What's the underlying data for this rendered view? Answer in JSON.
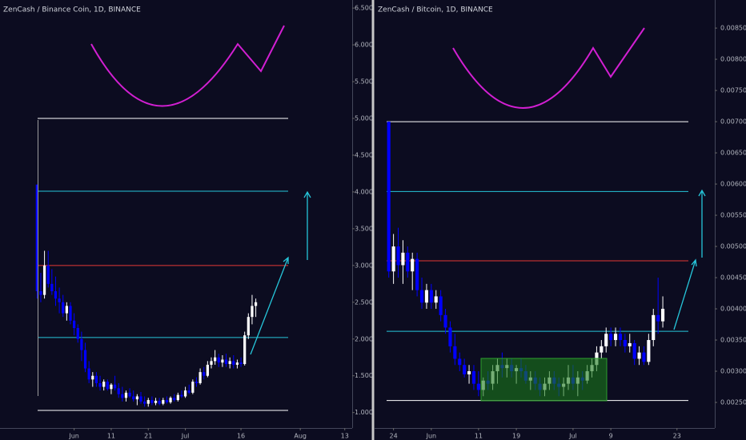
{
  "chart_data": [
    {
      "type": "candlestick",
      "title": "ZenCash / Binance Coin, 1D, BINANCE",
      "up_color": "#ffffff",
      "down_color": "#0000ff",
      "x": [
        0,
        1,
        2,
        3,
        4,
        5,
        6,
        7,
        8,
        9,
        10,
        11,
        12,
        13,
        14,
        15,
        16,
        17,
        18,
        19,
        20,
        21,
        22,
        23,
        24,
        25,
        26,
        27,
        28,
        29,
        30,
        31,
        32,
        33,
        34,
        35,
        36,
        37,
        38,
        39,
        40,
        41,
        42,
        43,
        44,
        45,
        46,
        47,
        48,
        49,
        50,
        51,
        52,
        53,
        54,
        55,
        56,
        57,
        58,
        59
      ],
      "ohlc": [
        [
          4.1,
          4.1,
          2.55,
          2.65
        ],
        [
          2.65,
          2.9,
          2.5,
          2.6
        ],
        [
          2.6,
          3.2,
          2.55,
          3.0
        ],
        [
          3.0,
          3.2,
          2.7,
          2.75
        ],
        [
          2.75,
          2.95,
          2.6,
          2.65
        ],
        [
          2.65,
          2.85,
          2.45,
          2.55
        ],
        [
          2.55,
          2.7,
          2.35,
          2.5
        ],
        [
          2.5,
          2.6,
          2.3,
          2.35
        ],
        [
          2.35,
          2.5,
          2.25,
          2.45
        ],
        [
          2.45,
          2.5,
          2.2,
          2.25
        ],
        [
          2.25,
          2.35,
          2.05,
          2.15
        ],
        [
          2.15,
          2.2,
          1.95,
          2.0
        ],
        [
          2.0,
          2.1,
          1.7,
          1.85
        ],
        [
          1.85,
          1.95,
          1.55,
          1.6
        ],
        [
          1.6,
          1.7,
          1.4,
          1.45
        ],
        [
          1.45,
          1.55,
          1.35,
          1.5
        ],
        [
          1.5,
          1.55,
          1.35,
          1.4
        ],
        [
          1.4,
          1.5,
          1.3,
          1.35
        ],
        [
          1.35,
          1.45,
          1.3,
          1.42
        ],
        [
          1.42,
          1.45,
          1.3,
          1.32
        ],
        [
          1.32,
          1.4,
          1.25,
          1.38
        ],
        [
          1.38,
          1.5,
          1.3,
          1.33
        ],
        [
          1.33,
          1.4,
          1.2,
          1.25
        ],
        [
          1.25,
          1.35,
          1.15,
          1.2
        ],
        [
          1.2,
          1.3,
          1.15,
          1.27
        ],
        [
          1.27,
          1.33,
          1.2,
          1.22
        ],
        [
          1.22,
          1.3,
          1.15,
          1.18
        ],
        [
          1.18,
          1.25,
          1.1,
          1.22
        ],
        [
          1.22,
          1.28,
          1.12,
          1.15
        ],
        [
          1.15,
          1.22,
          1.08,
          1.12
        ],
        [
          1.12,
          1.2,
          1.08,
          1.17
        ],
        [
          1.17,
          1.22,
          1.1,
          1.13
        ],
        [
          1.13,
          1.2,
          1.1,
          1.16
        ],
        [
          1.16,
          1.2,
          1.1,
          1.12
        ],
        [
          1.12,
          1.2,
          1.1,
          1.17
        ],
        [
          1.17,
          1.22,
          1.12,
          1.14
        ],
        [
          1.14,
          1.22,
          1.12,
          1.2
        ],
        [
          1.2,
          1.25,
          1.15,
          1.17
        ],
        [
          1.17,
          1.27,
          1.15,
          1.24
        ],
        [
          1.24,
          1.3,
          1.2,
          1.22
        ],
        [
          1.22,
          1.35,
          1.2,
          1.3
        ],
        [
          1.3,
          1.38,
          1.25,
          1.27
        ],
        [
          1.27,
          1.45,
          1.25,
          1.42
        ],
        [
          1.42,
          1.48,
          1.35,
          1.4
        ],
        [
          1.4,
          1.6,
          1.38,
          1.55
        ],
        [
          1.55,
          1.62,
          1.45,
          1.5
        ],
        [
          1.5,
          1.7,
          1.48,
          1.65
        ],
        [
          1.65,
          1.75,
          1.6,
          1.7
        ],
        [
          1.7,
          1.85,
          1.65,
          1.75
        ],
        [
          1.75,
          1.8,
          1.62,
          1.68
        ],
        [
          1.68,
          1.78,
          1.62,
          1.72
        ],
        [
          1.72,
          1.8,
          1.62,
          1.66
        ],
        [
          1.66,
          1.75,
          1.6,
          1.7
        ],
        [
          1.7,
          1.78,
          1.6,
          1.65
        ],
        [
          1.65,
          1.72,
          1.6,
          1.68
        ],
        [
          1.68,
          1.75,
          1.62,
          1.66
        ],
        [
          1.66,
          2.1,
          1.64,
          2.05
        ],
        [
          2.05,
          2.35,
          2.0,
          2.3
        ],
        [
          2.3,
          2.6,
          2.2,
          2.45
        ],
        [
          2.45,
          2.55,
          2.3,
          2.5
        ]
      ],
      "xlim": [
        -10,
        85
      ],
      "xticks": [
        {
          "value": 10,
          "label": "Jun"
        },
        {
          "value": 20,
          "label": "11"
        },
        {
          "value": 30,
          "label": "21"
        },
        {
          "value": 40,
          "label": "Jul"
        },
        {
          "value": 55,
          "label": "16"
        },
        {
          "value": 71,
          "label": "Aug"
        },
        {
          "value": 83,
          "label": "13"
        }
      ],
      "ylim": [
        0.79,
        6.61
      ],
      "yticks": [
        {
          "value": 1,
          "label": "1.000"
        },
        {
          "value": 1.5,
          "label": "1.500"
        },
        {
          "value": 2,
          "label": "2.000"
        },
        {
          "value": 2.5,
          "label": "2.500"
        },
        {
          "value": 3,
          "label": "3.000"
        },
        {
          "value": 3.5,
          "label": "3.500"
        },
        {
          "value": 4,
          "label": "4.000"
        },
        {
          "value": 4.5,
          "label": "4.500"
        },
        {
          "value": 5,
          "label": "5.000"
        },
        {
          "value": 5.5,
          "label": "5.500"
        },
        {
          "value": 6,
          "label": "6.000"
        },
        {
          "value": 6.5,
          "label": "6.500"
        }
      ],
      "levels": [
        {
          "value": 5.0,
          "color": "#ffffff"
        },
        {
          "value": 4.01,
          "color": "#26c6da"
        },
        {
          "value": 3.0,
          "color": "#e53935"
        },
        {
          "value": 2.02,
          "color": "#26c6da"
        },
        {
          "value": 1.03,
          "color": "#ffffff"
        }
      ]
    },
    {
      "type": "candlestick",
      "title": "ZenCash / Bitcoin, 1D, BINANCE",
      "up_color": "#ffffff",
      "down_color": "#0000ff",
      "x": [
        0,
        1,
        2,
        3,
        4,
        5,
        6,
        7,
        8,
        9,
        10,
        11,
        12,
        13,
        14,
        15,
        16,
        17,
        18,
        19,
        20,
        21,
        22,
        23,
        24,
        25,
        26,
        27,
        28,
        29,
        30,
        31,
        32,
        33,
        34,
        35,
        36,
        37,
        38,
        39,
        40,
        41,
        42,
        43,
        44,
        45,
        46,
        47,
        48,
        49,
        50,
        51,
        52,
        53,
        54,
        55,
        56,
        57,
        58
      ],
      "ohlc": [
        [
          0.007,
          0.007,
          0.0045,
          0.0046
        ],
        [
          0.0046,
          0.0052,
          0.0044,
          0.005
        ],
        [
          0.005,
          0.0053,
          0.0045,
          0.0047
        ],
        [
          0.0047,
          0.0051,
          0.0044,
          0.0049
        ],
        [
          0.0049,
          0.005,
          0.0045,
          0.0046
        ],
        [
          0.0046,
          0.0049,
          0.0043,
          0.0048
        ],
        [
          0.0048,
          0.0049,
          0.0042,
          0.0043
        ],
        [
          0.0043,
          0.0045,
          0.004,
          0.0041
        ],
        [
          0.0041,
          0.0044,
          0.004,
          0.0043
        ],
        [
          0.0043,
          0.0044,
          0.004,
          0.0041
        ],
        [
          0.0041,
          0.0043,
          0.004,
          0.0042
        ],
        [
          0.0042,
          0.0043,
          0.0038,
          0.0039
        ],
        [
          0.0039,
          0.004,
          0.0036,
          0.0037
        ],
        [
          0.0037,
          0.0038,
          0.0033,
          0.0034
        ],
        [
          0.0034,
          0.0036,
          0.0031,
          0.0032
        ],
        [
          0.0032,
          0.0033,
          0.003,
          0.0031
        ],
        [
          0.0031,
          0.0032,
          0.0029,
          0.00295
        ],
        [
          0.00295,
          0.0031,
          0.0028,
          0.003
        ],
        [
          0.003,
          0.0031,
          0.0027,
          0.0028
        ],
        [
          0.0028,
          0.003,
          0.0026,
          0.0027
        ],
        [
          0.0027,
          0.0029,
          0.0026,
          0.00285
        ],
        [
          0.00285,
          0.003,
          0.0027,
          0.0028
        ],
        [
          0.0028,
          0.0031,
          0.0027,
          0.003
        ],
        [
          0.003,
          0.0032,
          0.0028,
          0.0031
        ],
        [
          0.0031,
          0.0033,
          0.0029,
          0.00305
        ],
        [
          0.00305,
          0.0032,
          0.0029,
          0.0031
        ],
        [
          0.0031,
          0.0032,
          0.0029,
          0.003
        ],
        [
          0.003,
          0.0031,
          0.0028,
          0.00305
        ],
        [
          0.00305,
          0.0032,
          0.0029,
          0.003
        ],
        [
          0.003,
          0.0031,
          0.0028,
          0.00285
        ],
        [
          0.00285,
          0.003,
          0.0027,
          0.0029
        ],
        [
          0.0029,
          0.003,
          0.0027,
          0.0028
        ],
        [
          0.0028,
          0.0029,
          0.0026,
          0.0027
        ],
        [
          0.0027,
          0.0029,
          0.0026,
          0.0028
        ],
        [
          0.0028,
          0.003,
          0.0027,
          0.0029
        ],
        [
          0.0029,
          0.003,
          0.0027,
          0.0028
        ],
        [
          0.0028,
          0.0029,
          0.0026,
          0.00275
        ],
        [
          0.00275,
          0.0029,
          0.0026,
          0.0028
        ],
        [
          0.0028,
          0.0031,
          0.0027,
          0.0029
        ],
        [
          0.0029,
          0.0031,
          0.0027,
          0.0028
        ],
        [
          0.0028,
          0.003,
          0.0026,
          0.0029
        ],
        [
          0.0029,
          0.003,
          0.0027,
          0.00285
        ],
        [
          0.00285,
          0.0031,
          0.0028,
          0.003
        ],
        [
          0.003,
          0.0032,
          0.0029,
          0.0031
        ],
        [
          0.0031,
          0.0034,
          0.003,
          0.0033
        ],
        [
          0.0033,
          0.0035,
          0.0032,
          0.0034
        ],
        [
          0.0034,
          0.0037,
          0.0033,
          0.0036
        ],
        [
          0.0036,
          0.0037,
          0.0034,
          0.0035
        ],
        [
          0.0035,
          0.0037,
          0.0034,
          0.0036
        ],
        [
          0.0036,
          0.0037,
          0.0034,
          0.0035
        ],
        [
          0.0035,
          0.0036,
          0.0033,
          0.0034
        ],
        [
          0.0034,
          0.0036,
          0.0033,
          0.00345
        ],
        [
          0.00345,
          0.0035,
          0.0031,
          0.0032
        ],
        [
          0.0032,
          0.0034,
          0.0031,
          0.0033
        ],
        [
          0.0033,
          0.0034,
          0.0031,
          0.00315
        ],
        [
          0.00315,
          0.0036,
          0.0031,
          0.0035
        ],
        [
          0.0035,
          0.004,
          0.0034,
          0.0039
        ],
        [
          0.0039,
          0.0045,
          0.0036,
          0.0038
        ],
        [
          0.0038,
          0.0042,
          0.0037,
          0.004
        ]
      ],
      "xlim": [
        -3,
        69
      ],
      "xticks": [
        {
          "value": 1,
          "label": "24"
        },
        {
          "value": 9,
          "label": "Jun"
        },
        {
          "value": 19,
          "label": "11"
        },
        {
          "value": 27,
          "label": "19"
        },
        {
          "value": 39,
          "label": "Jul"
        },
        {
          "value": 47,
          "label": "9"
        },
        {
          "value": 61,
          "label": "23"
        }
      ],
      "ylim": [
        0.00209,
        0.00895
      ],
      "yticks": [
        {
          "value": 0.0025,
          "label": "0.00250"
        },
        {
          "value": 0.003,
          "label": "0.00300"
        },
        {
          "value": 0.0035,
          "label": "0.00350"
        },
        {
          "value": 0.004,
          "label": "0.00400"
        },
        {
          "value": 0.0045,
          "label": "0.00450"
        },
        {
          "value": 0.005,
          "label": "0.00500"
        },
        {
          "value": 0.0055,
          "label": "0.00550"
        },
        {
          "value": 0.006,
          "label": "0.00600"
        },
        {
          "value": 0.0065,
          "label": "0.00650"
        },
        {
          "value": 0.007,
          "label": "0.00700"
        },
        {
          "value": 0.0075,
          "label": "0.00750"
        },
        {
          "value": 0.008,
          "label": "0.00800"
        },
        {
          "value": 0.0085,
          "label": "0.00850"
        }
      ],
      "levels": [
        {
          "value": 0.007,
          "color": "#ffffff"
        },
        {
          "value": 0.00588,
          "color": "#26c6da"
        },
        {
          "value": 0.00477,
          "color": "#e53935"
        },
        {
          "value": 0.00364,
          "color": "#26c6da"
        },
        {
          "value": 0.00253,
          "color": "#ffffff"
        }
      ]
    }
  ]
}
